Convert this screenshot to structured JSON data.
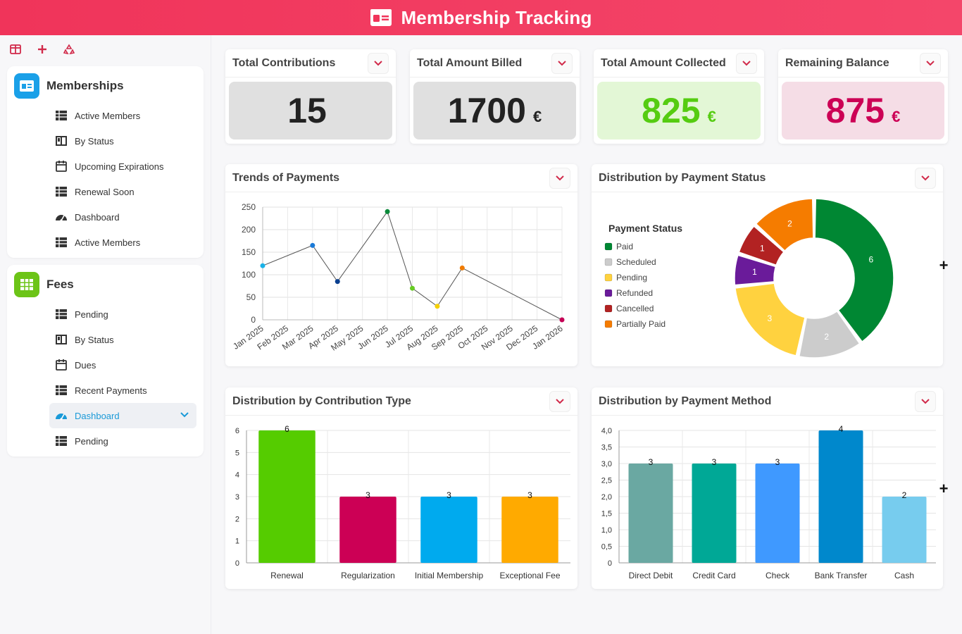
{
  "app": {
    "title": "Membership Tracking"
  },
  "sidebar": {
    "groups": [
      {
        "label": "Memberships",
        "items": [
          {
            "label": "Active Members",
            "icon": "table-icon"
          },
          {
            "label": "By Status",
            "icon": "kanban-icon"
          },
          {
            "label": "Upcoming Expirations",
            "icon": "calendar-icon"
          },
          {
            "label": "Renewal Soon",
            "icon": "table-icon"
          },
          {
            "label": "Dashboard",
            "icon": "gauge-icon"
          },
          {
            "label": "Active Members",
            "icon": "table-icon"
          }
        ]
      },
      {
        "label": "Fees",
        "items": [
          {
            "label": "Pending",
            "icon": "table-icon"
          },
          {
            "label": "By Status",
            "icon": "kanban-icon"
          },
          {
            "label": "Dues",
            "icon": "calendar-icon"
          },
          {
            "label": "Recent Payments",
            "icon": "table-icon"
          },
          {
            "label": "Dashboard",
            "icon": "gauge-icon"
          },
          {
            "label": "Pending",
            "icon": "table-icon"
          }
        ]
      }
    ]
  },
  "kpis": [
    {
      "title": "Total Contributions",
      "value": "15",
      "unit": "",
      "bg": "#e0e0e0",
      "color": "#222222"
    },
    {
      "title": "Total Amount Billed",
      "value": "1700",
      "unit": "€",
      "bg": "#e0e0e0",
      "color": "#222222"
    },
    {
      "title": "Total Amount Collected",
      "value": "825",
      "unit": "€",
      "bg": "#e3f7d6",
      "color": "#55cc11"
    },
    {
      "title": "Remaining Balance",
      "value": "875",
      "unit": "€",
      "bg": "#f5dde6",
      "color": "#cc0055"
    }
  ],
  "charts": {
    "trends_title": "Trends of Payments",
    "status_title": "Distribution by Payment Status",
    "contrib_title": "Distribution by Contribution Type",
    "method_title": "Distribution by Payment Method"
  },
  "chart_data": [
    {
      "type": "line",
      "title": "Trends of Payments",
      "x": [
        "Jan 2025",
        "Feb 2025",
        "Mar 2025",
        "Apr 2025",
        "May 2025",
        "Jun 2025",
        "Jul 2025",
        "Aug 2025",
        "Sep 2025",
        "Oct 2025",
        "Nov 2025",
        "Dec 2025",
        "Jan 2026"
      ],
      "yticks": [
        "0",
        "50",
        "100",
        "150",
        "200",
        "250"
      ],
      "points": [
        {
          "x": "Jan 2025",
          "y": 120,
          "color": "#1ab2e8"
        },
        {
          "x": "Mar 2025",
          "y": 165,
          "color": "#1a7ad8"
        },
        {
          "x": "Apr 2025",
          "y": 85,
          "color": "#0a3f8f"
        },
        {
          "x": "Jun 2025",
          "y": 240,
          "color": "#0a8a3a"
        },
        {
          "x": "Jul 2025",
          "y": 70,
          "color": "#66cc22"
        },
        {
          "x": "Aug 2025",
          "y": 30,
          "color": "#f5d000"
        },
        {
          "x": "Sep 2025",
          "y": 115,
          "color": "#f07b00"
        },
        {
          "x": "Jan 2026",
          "y": 0,
          "color": "#c40055"
        }
      ],
      "ylim": [
        0,
        250
      ],
      "grid": true
    },
    {
      "type": "pie",
      "title": "Distribution by Payment Status",
      "legend_title": "Payment Status",
      "legend": [
        {
          "label": "Paid",
          "color": "#008733"
        },
        {
          "label": "Scheduled",
          "color": "#cccccc"
        },
        {
          "label": "Pending",
          "color": "#ffd23f"
        },
        {
          "label": "Refunded",
          "color": "#6a1b9a"
        },
        {
          "label": "Cancelled",
          "color": "#b22222"
        },
        {
          "label": "Partially Paid",
          "color": "#f57c00"
        }
      ],
      "values": [
        6,
        2,
        3,
        1,
        1,
        2
      ],
      "labels": [
        "6",
        "2",
        "3",
        "1",
        "1",
        "2"
      ]
    },
    {
      "type": "bar",
      "title": "Distribution by Contribution Type",
      "categories": [
        "Renewal",
        "Regularization",
        "Initial Membership",
        "Exceptional Fee"
      ],
      "values": [
        6,
        3,
        3,
        3
      ],
      "value_labels": [
        "6",
        "3",
        "3",
        "3"
      ],
      "colors": [
        "#55cc00",
        "#cc0055",
        "#00aaee",
        "#ffaa00"
      ],
      "yticks": [
        "0",
        "1",
        "2",
        "3",
        "4",
        "5",
        "6"
      ],
      "ylim": [
        0,
        6
      ]
    },
    {
      "type": "bar",
      "title": "Distribution by Payment Method",
      "categories": [
        "Direct Debit",
        "Credit Card",
        "Check",
        "Bank Transfer",
        "Cash"
      ],
      "values": [
        3,
        3,
        3,
        4,
        2
      ],
      "value_labels": [
        "3",
        "3",
        "3",
        "4",
        "2"
      ],
      "colors": [
        "#6aa8a2",
        "#00a896",
        "#3f99ff",
        "#0088cc",
        "#77ccee"
      ],
      "yticks": [
        "0",
        "0,5",
        "1,0",
        "1,5",
        "2,0",
        "2,5",
        "3,0",
        "3,5",
        "4,0"
      ],
      "ylim": [
        0,
        4
      ]
    }
  ]
}
